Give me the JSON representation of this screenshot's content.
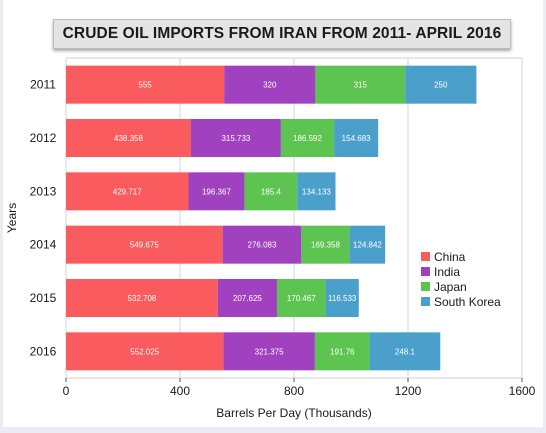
{
  "chart_data": {
    "type": "bar",
    "orientation": "horizontal",
    "stacked": true,
    "title": "CRUDE OIL IMPORTS FROM IRAN FROM 2011- APRIL 2016",
    "xlabel": "Barrels Per Day (Thousands)",
    "ylabel": "Years",
    "categories": [
      "2011",
      "2012",
      "2013",
      "2014",
      "2015",
      "2016"
    ],
    "series": [
      {
        "name": "China",
        "color": "#f95b5e",
        "values": [
          555,
          438.358,
          429.717,
          549.675,
          532.708,
          552.025
        ],
        "labels": [
          "555",
          "438.358",
          "429.717",
          "549.675",
          "532.708",
          "552.025"
        ]
      },
      {
        "name": "India",
        "color": "#a042c0",
        "values": [
          320,
          315.733,
          196.367,
          276.083,
          207.625,
          321.375
        ],
        "labels": [
          "320",
          "315.733",
          "196.367",
          "276.083",
          "207.625",
          "321.375"
        ]
      },
      {
        "name": "Japan",
        "color": "#5ec451",
        "values": [
          315,
          186.592,
          185.4,
          169.358,
          170.467,
          191.76
        ],
        "labels": [
          "315",
          "186.592",
          "185.4",
          "169.358",
          "170.467",
          "191.76"
        ]
      },
      {
        "name": "South Korea",
        "color": "#4b9fcb",
        "values": [
          250,
          154.683,
          134.133,
          124.842,
          116.533,
          248.1
        ],
        "labels": [
          "250",
          "154.683",
          "134.133",
          "124.842",
          "116.533",
          "248.1"
        ]
      }
    ],
    "xlim": [
      0,
      1600
    ],
    "xticks": [
      0,
      400,
      800,
      1200,
      1600
    ],
    "grid": "vertical",
    "legend_position": "right"
  }
}
